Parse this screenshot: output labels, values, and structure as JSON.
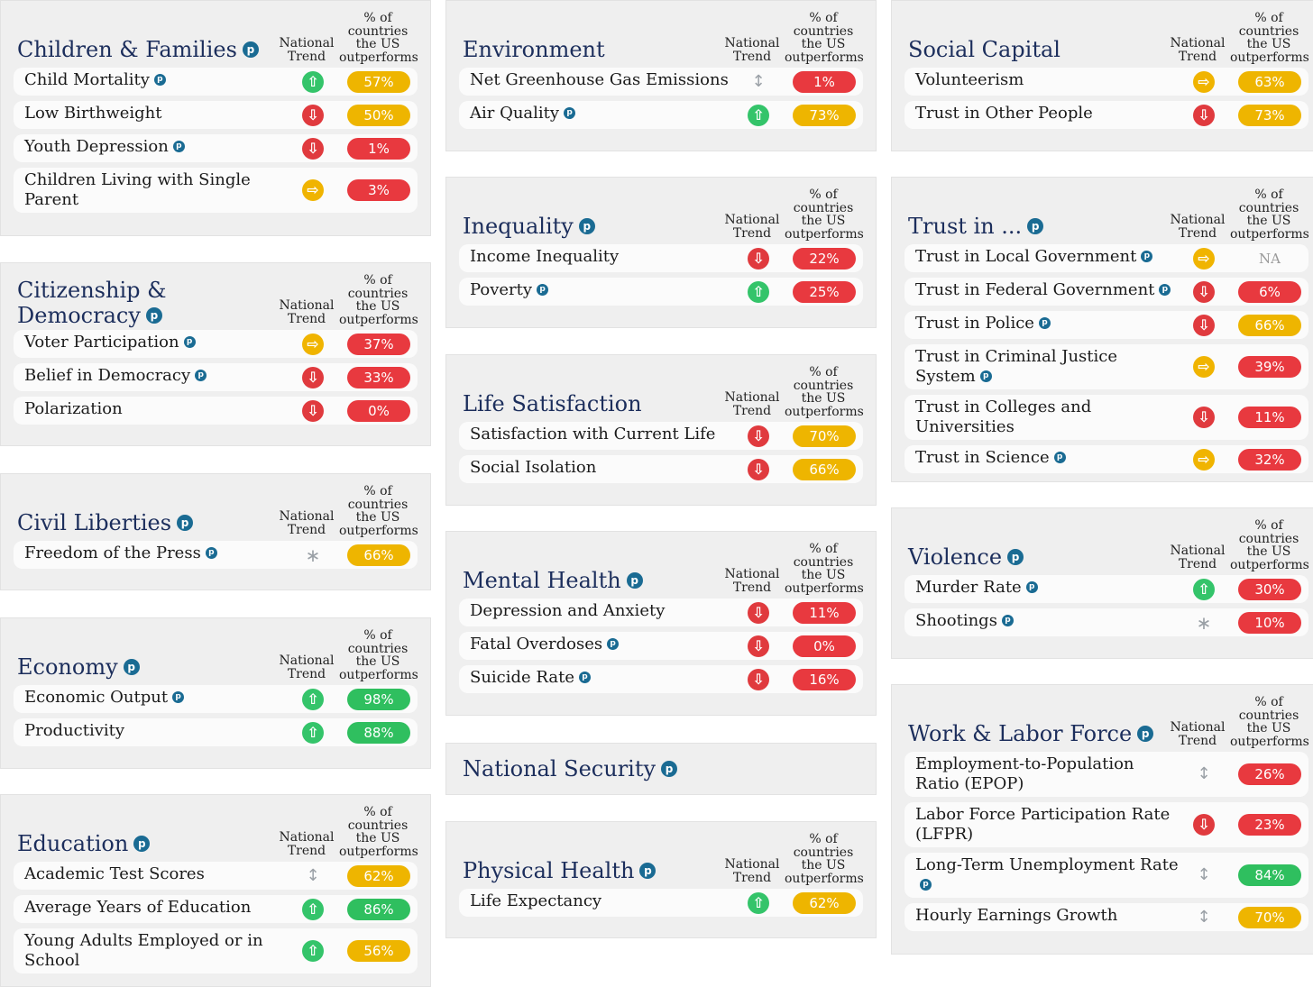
{
  "columns": [
    {
      "cards": [
        {
          "title": "Children & Families",
          "badge": true,
          "trend_header": "National Trend",
          "pct_header": "% of countries the US outperforms",
          "rows": [
            {
              "label": "Child Mortality",
              "badge": true,
              "trend": "up",
              "value": "57%",
              "color": "yellow"
            },
            {
              "label": "Low Birthweight",
              "badge": false,
              "trend": "down",
              "value": "50%",
              "color": "yellow"
            },
            {
              "label": "Youth Depression",
              "badge": true,
              "trend": "down",
              "value": "1%",
              "color": "red"
            },
            {
              "label": "Children Living with Single Parent",
              "badge": false,
              "trend": "flat",
              "value": "3%",
              "color": "red",
              "tall": true
            }
          ]
        },
        {
          "title": "Citizenship & Democracy",
          "badge": true,
          "trend_header": "National Trend",
          "pct_header": "% of countries the US outperforms",
          "rows": [
            {
              "label": "Voter Participation",
              "badge": true,
              "trend": "flat",
              "value": "37%",
              "color": "red"
            },
            {
              "label": "Belief in Democracy",
              "badge": true,
              "trend": "down",
              "value": "33%",
              "color": "red"
            },
            {
              "label": "Polarization",
              "badge": false,
              "trend": "down",
              "value": "0%",
              "color": "red"
            }
          ]
        },
        {
          "title": "Civil Liberties",
          "badge": true,
          "trend_header": "National Trend",
          "pct_header": "% of countries the US outperforms",
          "rows": [
            {
              "label": "Freedom of the Press",
              "badge": true,
              "trend": "star",
              "value": "66%",
              "color": "yellow"
            }
          ]
        },
        {
          "title": "Economy",
          "badge": true,
          "trend_header": "National Trend",
          "pct_header": "% of countries the US outperforms",
          "rows": [
            {
              "label": "Economic Output",
              "badge": true,
              "trend": "up",
              "value": "98%",
              "color": "green"
            },
            {
              "label": "Productivity",
              "badge": false,
              "trend": "up",
              "value": "88%",
              "color": "green"
            }
          ]
        },
        {
          "title": "Education",
          "badge": true,
          "trend_header": "National Trend",
          "pct_header": "% of countries the US outperforms",
          "rows": [
            {
              "label": "Academic Test Scores",
              "badge": false,
              "trend": "mixed",
              "value": "62%",
              "color": "yellow"
            },
            {
              "label": "Average Years of Education",
              "badge": false,
              "trend": "up",
              "value": "86%",
              "color": "green"
            },
            {
              "label": "Young Adults Employed or in School",
              "badge": false,
              "trend": "up",
              "value": "56%",
              "color": "yellow",
              "tall": true
            }
          ]
        }
      ]
    },
    {
      "cards": [
        {
          "title": "Environment",
          "badge": false,
          "trend_header": "National Trend",
          "pct_header": "% of countries the US outperforms",
          "rows": [
            {
              "label": "Net Greenhouse Gas Emissions",
              "badge": false,
              "trend": "mixed",
              "value": "1%",
              "color": "red"
            },
            {
              "label": "Air Quality",
              "badge": true,
              "trend": "up",
              "value": "73%",
              "color": "yellow"
            }
          ]
        },
        {
          "title": "Inequality",
          "badge": true,
          "trend_header": "National Trend",
          "pct_header": "% of countries the US outperforms",
          "rows": [
            {
              "label": "Income Inequality",
              "badge": false,
              "trend": "down",
              "value": "22%",
              "color": "red"
            },
            {
              "label": "Poverty",
              "badge": true,
              "trend": "up",
              "value": "25%",
              "color": "red"
            }
          ]
        },
        {
          "title": "Life Satisfaction",
          "badge": false,
          "trend_header": "National Trend",
          "pct_header": "% of countries the US outperforms",
          "rows": [
            {
              "label": "Satisfaction with Current Life",
              "badge": false,
              "trend": "down",
              "value": "70%",
              "color": "yellow"
            },
            {
              "label": "Social Isolation",
              "badge": false,
              "trend": "down",
              "value": "66%",
              "color": "yellow"
            }
          ]
        },
        {
          "title": "Mental Health",
          "badge": true,
          "trend_header": "National Trend",
          "pct_header": "% of countries the US outperforms",
          "rows": [
            {
              "label": "Depression and Anxiety",
              "badge": false,
              "trend": "down",
              "value": "11%",
              "color": "red"
            },
            {
              "label": "Fatal Overdoses",
              "badge": true,
              "trend": "down",
              "value": "0%",
              "color": "red"
            },
            {
              "label": "Suicide Rate",
              "badge": true,
              "trend": "down",
              "value": "16%",
              "color": "red"
            }
          ]
        },
        {
          "title": "National Security",
          "badge": true,
          "compact": true,
          "rows": []
        },
        {
          "title": "Physical Health",
          "badge": true,
          "trend_header": "National Trend",
          "pct_header": "% of countries the US outperforms",
          "rows": [
            {
              "label": "Life Expectancy",
              "badge": false,
              "trend": "up",
              "value": "62%",
              "color": "yellow"
            }
          ]
        }
      ]
    },
    {
      "cards": [
        {
          "title": "Social Capital",
          "badge": false,
          "trend_header": "National Trend",
          "pct_header": "% of countries the US outperforms",
          "rows": [
            {
              "label": "Volunteerism",
              "badge": false,
              "trend": "flat",
              "value": "63%",
              "color": "yellow"
            },
            {
              "label": "Trust in Other People",
              "badge": false,
              "trend": "down",
              "value": "73%",
              "color": "yellow"
            }
          ]
        },
        {
          "title": "Trust in ...",
          "badge": true,
          "trend_header": "National Trend",
          "pct_header": "% of countries the US outperforms",
          "rows": [
            {
              "label": "Trust in Local Government",
              "badge": true,
              "trend": "flat",
              "value": "NA",
              "color": "na"
            },
            {
              "label": "Trust in Federal Government",
              "badge": true,
              "trend": "down",
              "value": "6%",
              "color": "red"
            },
            {
              "label": "Trust in Police",
              "badge": true,
              "trend": "down",
              "value": "66%",
              "color": "yellow"
            },
            {
              "label": "Trust in Criminal Justice System",
              "badge": true,
              "trend": "flat",
              "value": "39%",
              "color": "red",
              "tall": true
            },
            {
              "label": "Trust in Colleges and Universities",
              "badge": false,
              "trend": "down",
              "value": "11%",
              "color": "red"
            },
            {
              "label": "Trust in Science",
              "badge": true,
              "trend": "flat",
              "value": "32%",
              "color": "red"
            }
          ]
        },
        {
          "title": "Violence",
          "badge": true,
          "trend_header": "National Trend",
          "pct_header": "% of countries the US outperforms",
          "rows": [
            {
              "label": "Murder Rate",
              "badge": true,
              "trend": "up",
              "value": "30%",
              "color": "red"
            },
            {
              "label": "Shootings",
              "badge": true,
              "trend": "star",
              "value": "10%",
              "color": "red"
            }
          ]
        },
        {
          "title": "Work & Labor Force",
          "badge": true,
          "trend_header": "National Trend",
          "pct_header": "% of countries the US outperforms",
          "rows": [
            {
              "label": "Employment-to-Population Ratio (EPOP)",
              "badge": false,
              "trend": "mixed",
              "value": "26%",
              "color": "red",
              "tall": true
            },
            {
              "label": "Labor Force Participation Rate (LFPR)",
              "badge": false,
              "trend": "down",
              "value": "23%",
              "color": "red",
              "tall": true
            },
            {
              "label": "Long-Term Unemployment Rate",
              "badge": true,
              "trend": "mixed",
              "value": "84%",
              "color": "green",
              "tall": true
            },
            {
              "label": "Hourly Earnings Growth",
              "badge": false,
              "trend": "mixed",
              "value": "70%",
              "color": "yellow"
            }
          ]
        }
      ]
    }
  ],
  "badge_glyph": "p",
  "icons": {
    "up": "arrow-up-icon",
    "down": "arrow-down-icon",
    "flat": "arrow-right-icon",
    "mixed": "up-down-arrow-icon",
    "star": "asterisk-icon"
  }
}
